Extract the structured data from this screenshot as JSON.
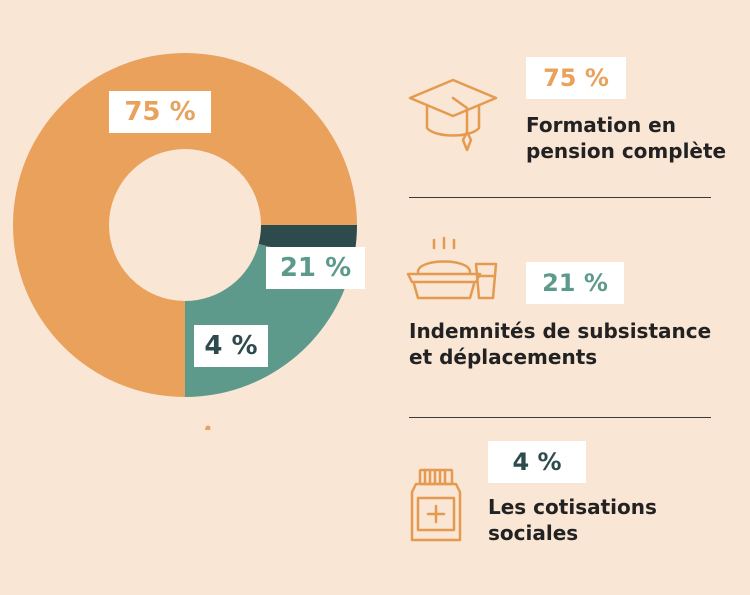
{
  "colors": {
    "background": "#f9e6d4",
    "orange": "#e9a15c",
    "teal": "#5e9a8c",
    "dark_teal": "#2d4a4d",
    "icon_stroke": "#e49a50"
  },
  "chart_data": {
    "type": "pie",
    "style": "donut",
    "slices": [
      {
        "label": "75 %",
        "value": 75,
        "color": "#e9a15c"
      },
      {
        "label": "21 %",
        "value": 21,
        "color": "#5e9a8c"
      },
      {
        "label": "4 %",
        "value": 4,
        "color": "#2d4a4d"
      }
    ]
  },
  "legend": [
    {
      "value": "75 %",
      "line1": "Formation en",
      "line2": "pension complète",
      "icon": "graduation-cap-icon"
    },
    {
      "value": "21 %",
      "line1": "Indemnités de subsistance",
      "line2": "et déplacements",
      "icon": "meal-tray-icon"
    },
    {
      "value": "4 %",
      "line1": "Les cotisations",
      "line2": "sociales",
      "icon": "medicine-bottle-icon"
    }
  ],
  "arrow_icon": "curved-arrow-icon"
}
